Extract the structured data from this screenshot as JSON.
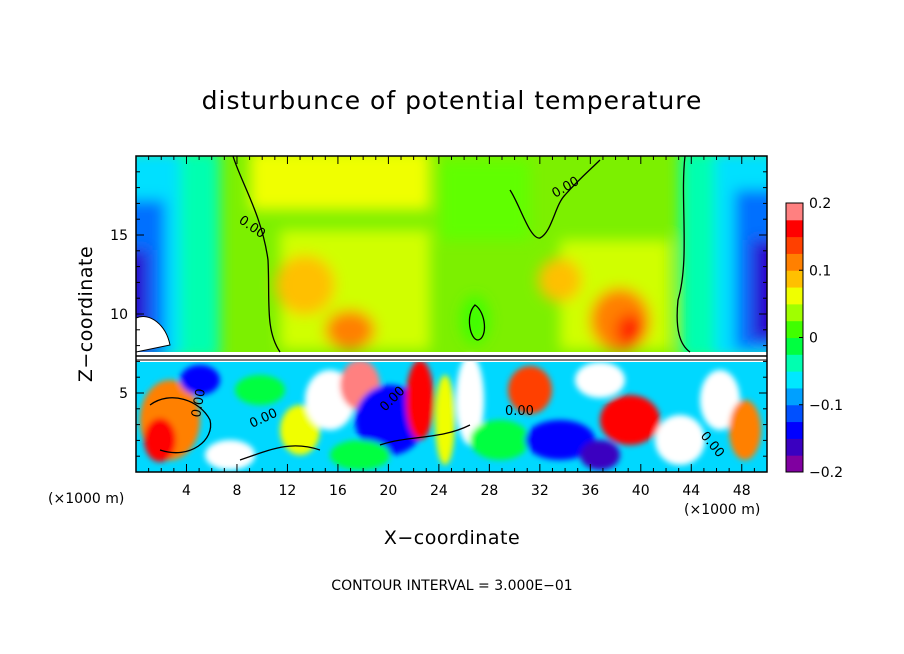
{
  "chart_data": {
    "type": "heatmap",
    "title": "disturbunce of potential temperature",
    "xlabel": "X−coordinate",
    "ylabel": "Z−coordinate",
    "x_unit_label_left": "(×1000 m)",
    "x_unit_label_right": "(×1000 m)",
    "note": "CONTOUR INTERVAL = 3.000E−01",
    "xlim": [
      0,
      50
    ],
    "ylim": [
      0,
      20
    ],
    "x_ticks": [
      "4",
      "8",
      "12",
      "16",
      "20",
      "24",
      "28",
      "32",
      "36",
      "40",
      "44",
      "48"
    ],
    "y_ticks": [
      "5",
      "10",
      "15"
    ],
    "colorbar": {
      "range": [
        -0.2,
        0.2
      ],
      "tick_labels": [
        "0.2",
        "0.1",
        "0",
        "−0.1",
        "−0.2"
      ],
      "colors": [
        "#8000a0",
        "#3a00c0",
        "#0000ff",
        "#0050ff",
        "#00a0ff",
        "#00e8ff",
        "#00ffb0",
        "#00ff40",
        "#40ff00",
        "#a0ff00",
        "#f0ff00",
        "#ffc000",
        "#ff8000",
        "#ff4000",
        "#ff0000",
        "#ff8080"
      ]
    },
    "contour_labels": [
      "0.00",
      "0.00",
      "0.00",
      "0.00",
      "0.00",
      "0.00",
      "0.00"
    ]
  }
}
